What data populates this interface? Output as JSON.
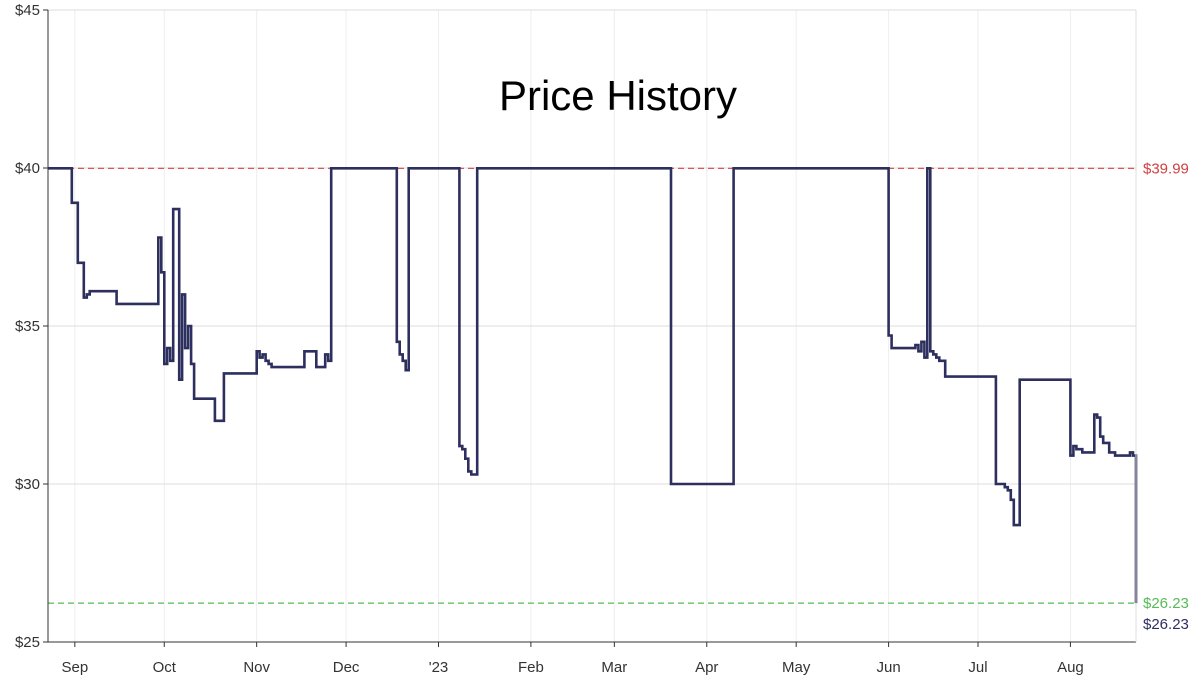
{
  "chart_data": {
    "type": "line",
    "title": "Price History",
    "y_axis": {
      "ticks": [
        25,
        30,
        35,
        40,
        45
      ],
      "tick_labels": [
        "$25",
        "$30",
        "$35",
        "$40",
        "$45"
      ],
      "ylim": [
        25,
        45
      ]
    },
    "x_axis": {
      "type": "date",
      "xlim": [
        "2022-08-23",
        "2023-08-23"
      ],
      "ticks": [
        "2022-09-01",
        "2022-10-01",
        "2022-11-01",
        "2022-12-01",
        "2023-01-01",
        "2023-02-01",
        "2023-03-01",
        "2023-04-01",
        "2023-05-01",
        "2023-06-01",
        "2023-07-01",
        "2023-08-01"
      ],
      "tick_labels": [
        "Sep",
        "Oct",
        "Nov",
        "Dec",
        "'23",
        "Feb",
        "Mar",
        "Apr",
        "May",
        "Jun",
        "Jul",
        "Aug"
      ]
    },
    "grid": true,
    "reference_lines": [
      {
        "value": 39.99,
        "label": "$39.99",
        "color": "#d04040",
        "style": "dashed"
      },
      {
        "value": 26.23,
        "label": "$26.23",
        "color": "#55bb55",
        "style": "dashed"
      }
    ],
    "current_value_label": {
      "value": 26.23,
      "label": "$26.23",
      "color": "#2d2f5e"
    },
    "series": [
      {
        "color": "#2d2f5e",
        "step": true,
        "x": [
          "2022-08-23",
          "2022-08-31",
          "2022-09-02",
          "2022-09-04",
          "2022-09-05",
          "2022-09-06",
          "2022-09-15",
          "2022-09-17",
          "2022-09-18",
          "2022-09-29",
          "2022-09-30",
          "2022-10-01",
          "2022-10-02",
          "2022-10-03",
          "2022-10-04",
          "2022-10-06",
          "2022-10-07",
          "2022-10-08",
          "2022-10-09",
          "2022-10-10",
          "2022-10-11",
          "2022-10-12",
          "2022-10-18",
          "2022-10-21",
          "2022-11-01",
          "2022-11-02",
          "2022-11-03",
          "2022-11-04",
          "2022-11-05",
          "2022-11-06",
          "2022-11-07",
          "2022-11-17",
          "2022-11-18",
          "2022-11-19",
          "2022-11-21",
          "2022-11-24",
          "2022-11-25",
          "2022-11-26",
          "2022-12-18",
          "2022-12-19",
          "2022-12-20",
          "2022-12-21",
          "2022-12-22",
          "2022-12-23",
          "2022-12-24",
          "2023-01-08",
          "2023-01-09",
          "2023-01-10",
          "2023-01-11",
          "2023-01-12",
          "2023-01-14",
          "2023-03-20",
          "2023-04-10",
          "2023-06-01",
          "2023-06-02",
          "2023-06-03",
          "2023-06-09",
          "2023-06-10",
          "2023-06-11",
          "2023-06-12",
          "2023-06-13",
          "2023-06-14",
          "2023-06-15",
          "2023-06-16",
          "2023-06-17",
          "2023-06-18",
          "2023-06-20",
          "2023-07-06",
          "2023-07-07",
          "2023-07-10",
          "2023-07-11",
          "2023-07-12",
          "2023-07-13",
          "2023-07-14",
          "2023-07-15",
          "2023-07-31",
          "2023-08-01",
          "2023-08-02",
          "2023-08-03",
          "2023-08-04",
          "2023-08-05",
          "2023-08-08",
          "2023-08-09",
          "2023-08-10",
          "2023-08-11",
          "2023-08-12",
          "2023-08-13",
          "2023-08-14",
          "2023-08-16",
          "2023-08-17",
          "2023-08-19",
          "2023-08-20",
          "2023-08-21",
          "2023-08-22",
          "2023-08-23"
        ],
        "y": [
          39.99,
          38.9,
          37.0,
          35.9,
          36.0,
          36.1,
          35.7,
          35.7,
          35.7,
          37.8,
          36.7,
          33.8,
          34.3,
          33.9,
          38.7,
          33.3,
          36.0,
          34.3,
          35.0,
          33.8,
          32.7,
          32.7,
          32.0,
          33.5,
          34.2,
          34.0,
          34.1,
          33.9,
          33.8,
          33.7,
          33.7,
          34.2,
          34.2,
          34.2,
          33.7,
          34.1,
          33.9,
          39.99,
          34.5,
          34.1,
          33.9,
          33.6,
          39.99,
          39.99,
          39.99,
          31.2,
          31.1,
          30.8,
          30.4,
          30.3,
          39.99,
          30.0,
          39.99,
          34.7,
          34.3,
          34.3,
          34.3,
          34.4,
          34.2,
          34.5,
          34.0,
          39.99,
          34.2,
          34.1,
          34.0,
          33.9,
          33.4,
          33.4,
          30.0,
          29.9,
          29.8,
          29.5,
          28.7,
          28.7,
          33.3,
          33.3,
          30.9,
          31.2,
          31.1,
          31.1,
          31.0,
          31.0,
          32.2,
          32.1,
          31.5,
          31.3,
          31.3,
          31.0,
          30.9,
          30.9,
          30.9,
          30.9,
          31.0,
          30.9,
          26.23
        ]
      }
    ]
  }
}
